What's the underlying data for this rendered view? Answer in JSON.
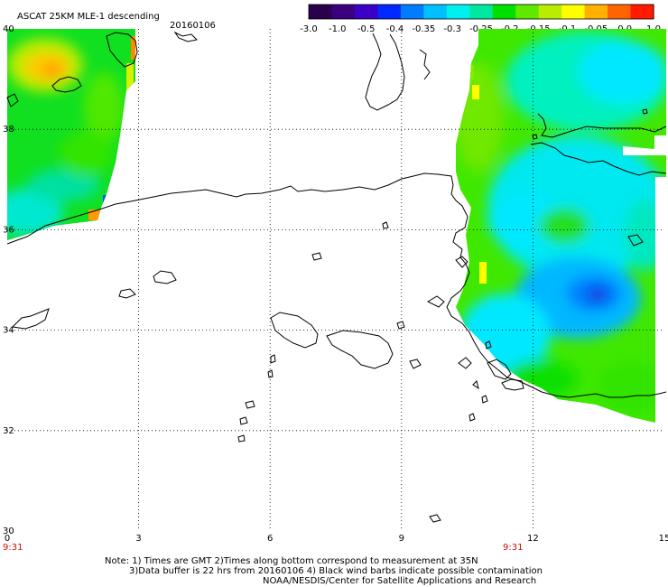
{
  "header": {
    "product": "ASCAT 25KM MLE-1 descending",
    "date": "20160106"
  },
  "colorbar": {
    "colors": [
      "#2b004a",
      "#3a0080",
      "#3b00c8",
      "#0028ff",
      "#007cff",
      "#00c0ff",
      "#00f0f0",
      "#00e8a0",
      "#00e000",
      "#60e800",
      "#b8ec00",
      "#ffff00",
      "#ffb000",
      "#ff6400",
      "#ff1a00"
    ],
    "tick_labels": [
      "-3.0",
      "-1.0",
      "-0.5",
      "-0.4",
      "-0.35",
      "-0.3",
      "-0.25",
      "-0.2",
      "-0.15",
      "-0.1",
      "-0.05",
      "0.0",
      "1.0"
    ]
  },
  "axes": {
    "lat_labels": [
      "40",
      "38",
      "36",
      "34",
      "32",
      "30"
    ],
    "lon_labels": [
      "0",
      "3",
      "6",
      "9",
      "12",
      "15"
    ],
    "lon_range": [
      0,
      15
    ],
    "lat_range": [
      30,
      40
    ],
    "grid": "dotted"
  },
  "time_labels": {
    "left": "9:31",
    "right": "9:31",
    "color": "#cc1100"
  },
  "notes": {
    "line1": "Note: 1) Times are GMT 2)Times along bottom correspond to measurement at 35N",
    "line2": "3)Data buffer is 22 hrs from 20160106 4) Black wind barbs indicate possible contamination",
    "line3": "NOAA/NESDIS/Center for Satellite Applications and Research"
  }
}
